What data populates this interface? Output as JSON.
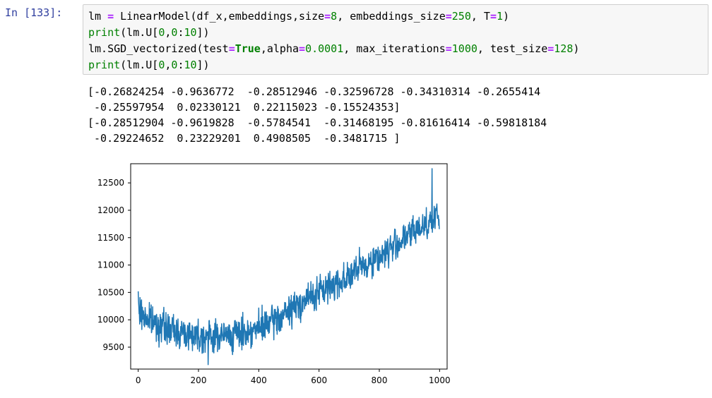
{
  "cell": {
    "prompt": "In [133]:",
    "code": [
      {
        "parts": [
          {
            "t": "lm ",
            "c": ""
          },
          {
            "t": "=",
            "c": "op"
          },
          {
            "t": " LinearModel(df_x,embeddings,size",
            "c": ""
          },
          {
            "t": "=",
            "c": "op"
          },
          {
            "t": "8",
            "c": "num"
          },
          {
            "t": ", embeddings_size",
            "c": ""
          },
          {
            "t": "=",
            "c": "op"
          },
          {
            "t": "250",
            "c": "num"
          },
          {
            "t": ", T",
            "c": ""
          },
          {
            "t": "=",
            "c": "op"
          },
          {
            "t": "1",
            "c": "num"
          },
          {
            "t": ")",
            "c": ""
          }
        ]
      },
      {
        "parts": [
          {
            "t": "print",
            "c": "builtin"
          },
          {
            "t": "(lm.U[",
            "c": ""
          },
          {
            "t": "0",
            "c": "num"
          },
          {
            "t": ",",
            "c": ""
          },
          {
            "t": "0",
            "c": "num"
          },
          {
            "t": ":",
            "c": ""
          },
          {
            "t": "10",
            "c": "num"
          },
          {
            "t": "])",
            "c": ""
          }
        ]
      },
      {
        "parts": [
          {
            "t": "lm.SGD_vectorized(test",
            "c": ""
          },
          {
            "t": "=",
            "c": "op"
          },
          {
            "t": "True",
            "c": "kw"
          },
          {
            "t": ",alpha",
            "c": ""
          },
          {
            "t": "=",
            "c": "op"
          },
          {
            "t": "0.0001",
            "c": "num"
          },
          {
            "t": ", max_iterations",
            "c": ""
          },
          {
            "t": "=",
            "c": "op"
          },
          {
            "t": "1000",
            "c": "num"
          },
          {
            "t": ", test_size",
            "c": ""
          },
          {
            "t": "=",
            "c": "op"
          },
          {
            "t": "128",
            "c": "num"
          },
          {
            "t": ")",
            "c": ""
          }
        ]
      },
      {
        "parts": [
          {
            "t": "print",
            "c": "builtin"
          },
          {
            "t": "(lm.U[",
            "c": ""
          },
          {
            "t": "0",
            "c": "num"
          },
          {
            "t": ",",
            "c": ""
          },
          {
            "t": "0",
            "c": "num"
          },
          {
            "t": ":",
            "c": ""
          },
          {
            "t": "10",
            "c": "num"
          },
          {
            "t": "])",
            "c": ""
          }
        ]
      }
    ]
  },
  "output": {
    "lines": [
      "[-0.26824254 -0.9636772  -0.28512946 -0.32596728 -0.34310314 -0.2655414",
      " -0.25597954  0.02330121  0.22115023 -0.15524353]",
      "[-0.28512904 -0.9619828  -0.5784541  -0.31468195 -0.81616414 -0.59818184",
      " -0.29224652  0.23229201  0.4908505  -0.3481715 ]"
    ]
  },
  "colors": {
    "prompt": "#303f9f",
    "keyword": "#008000",
    "operator": "#aa22ff",
    "line": "#1f77b4"
  },
  "chart_data": {
    "type": "line",
    "title": "",
    "xlabel": "",
    "ylabel": "",
    "xlim": [
      -25,
      1025
    ],
    "ylim": [
      9100,
      12850
    ],
    "xticks": [
      0,
      200,
      400,
      600,
      800,
      1000
    ],
    "yticks": [
      9500,
      10000,
      10500,
      11000,
      11500,
      12000,
      12500
    ],
    "grid": false,
    "series": [
      {
        "name": "",
        "n_points": 1000,
        "trend_x": [
          0,
          50,
          100,
          150,
          200,
          250,
          300,
          350,
          400,
          450,
          500,
          550,
          600,
          650,
          700,
          750,
          800,
          850,
          900,
          950,
          1000
        ],
        "trend_y": [
          10150,
          9950,
          9830,
          9760,
          9720,
          9700,
          9720,
          9760,
          9840,
          9980,
          10150,
          10350,
          10500,
          10650,
          10800,
          11000,
          11150,
          11350,
          11550,
          11750,
          11900
        ],
        "noise_amplitude": 250,
        "max_point": [
          975,
          12760
        ],
        "min_point": [
          232,
          9180
        ]
      }
    ]
  }
}
